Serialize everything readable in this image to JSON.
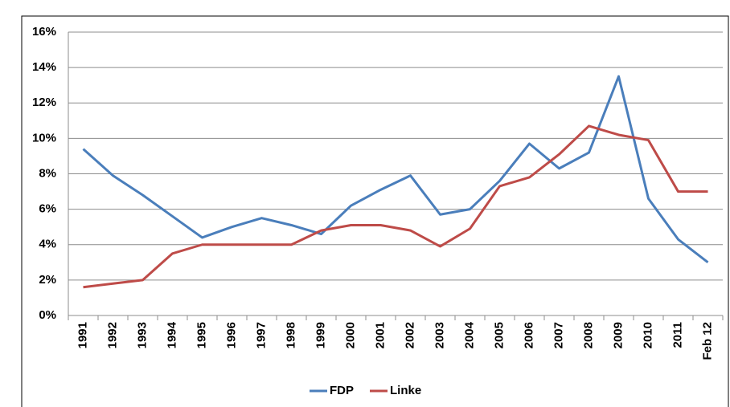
{
  "chart_data": {
    "type": "line",
    "categories": [
      "1991",
      "1992",
      "1993",
      "1994",
      "1995",
      "1996",
      "1997",
      "1998",
      "1999",
      "2000",
      "2001",
      "2002",
      "2003",
      "2004",
      "2005",
      "2006",
      "2007",
      "2008",
      "2009",
      "2010",
      "2011",
      "Feb 12"
    ],
    "series": [
      {
        "name": "FDP",
        "color": "#4a7ebb",
        "values": [
          9.4,
          7.9,
          6.8,
          5.6,
          4.4,
          5.0,
          5.5,
          5.1,
          4.6,
          6.2,
          7.1,
          7.9,
          5.7,
          6.0,
          7.6,
          9.7,
          8.3,
          9.2,
          13.5,
          6.6,
          4.3,
          3.0
        ]
      },
      {
        "name": "Linke",
        "color": "#be4b48",
        "values": [
          1.6,
          1.8,
          2.0,
          3.5,
          4.0,
          4.0,
          4.0,
          4.0,
          4.8,
          5.1,
          5.1,
          4.8,
          3.9,
          4.9,
          7.3,
          7.8,
          9.1,
          10.7,
          10.2,
          9.9,
          7.0,
          7.0
        ]
      }
    ],
    "ylim": [
      0,
      16
    ],
    "yticks": [
      {
        "value": 0,
        "label": "0%"
      },
      {
        "value": 2,
        "label": "2%"
      },
      {
        "value": 4,
        "label": "4%"
      },
      {
        "value": 6,
        "label": "6%"
      },
      {
        "value": 8,
        "label": "8%"
      },
      {
        "value": 10,
        "label": "10%"
      },
      {
        "value": 12,
        "label": "12%"
      },
      {
        "value": 14,
        "label": "14%"
      },
      {
        "value": 16,
        "label": "16%"
      }
    ],
    "grid": true,
    "legend": "bottom"
  }
}
